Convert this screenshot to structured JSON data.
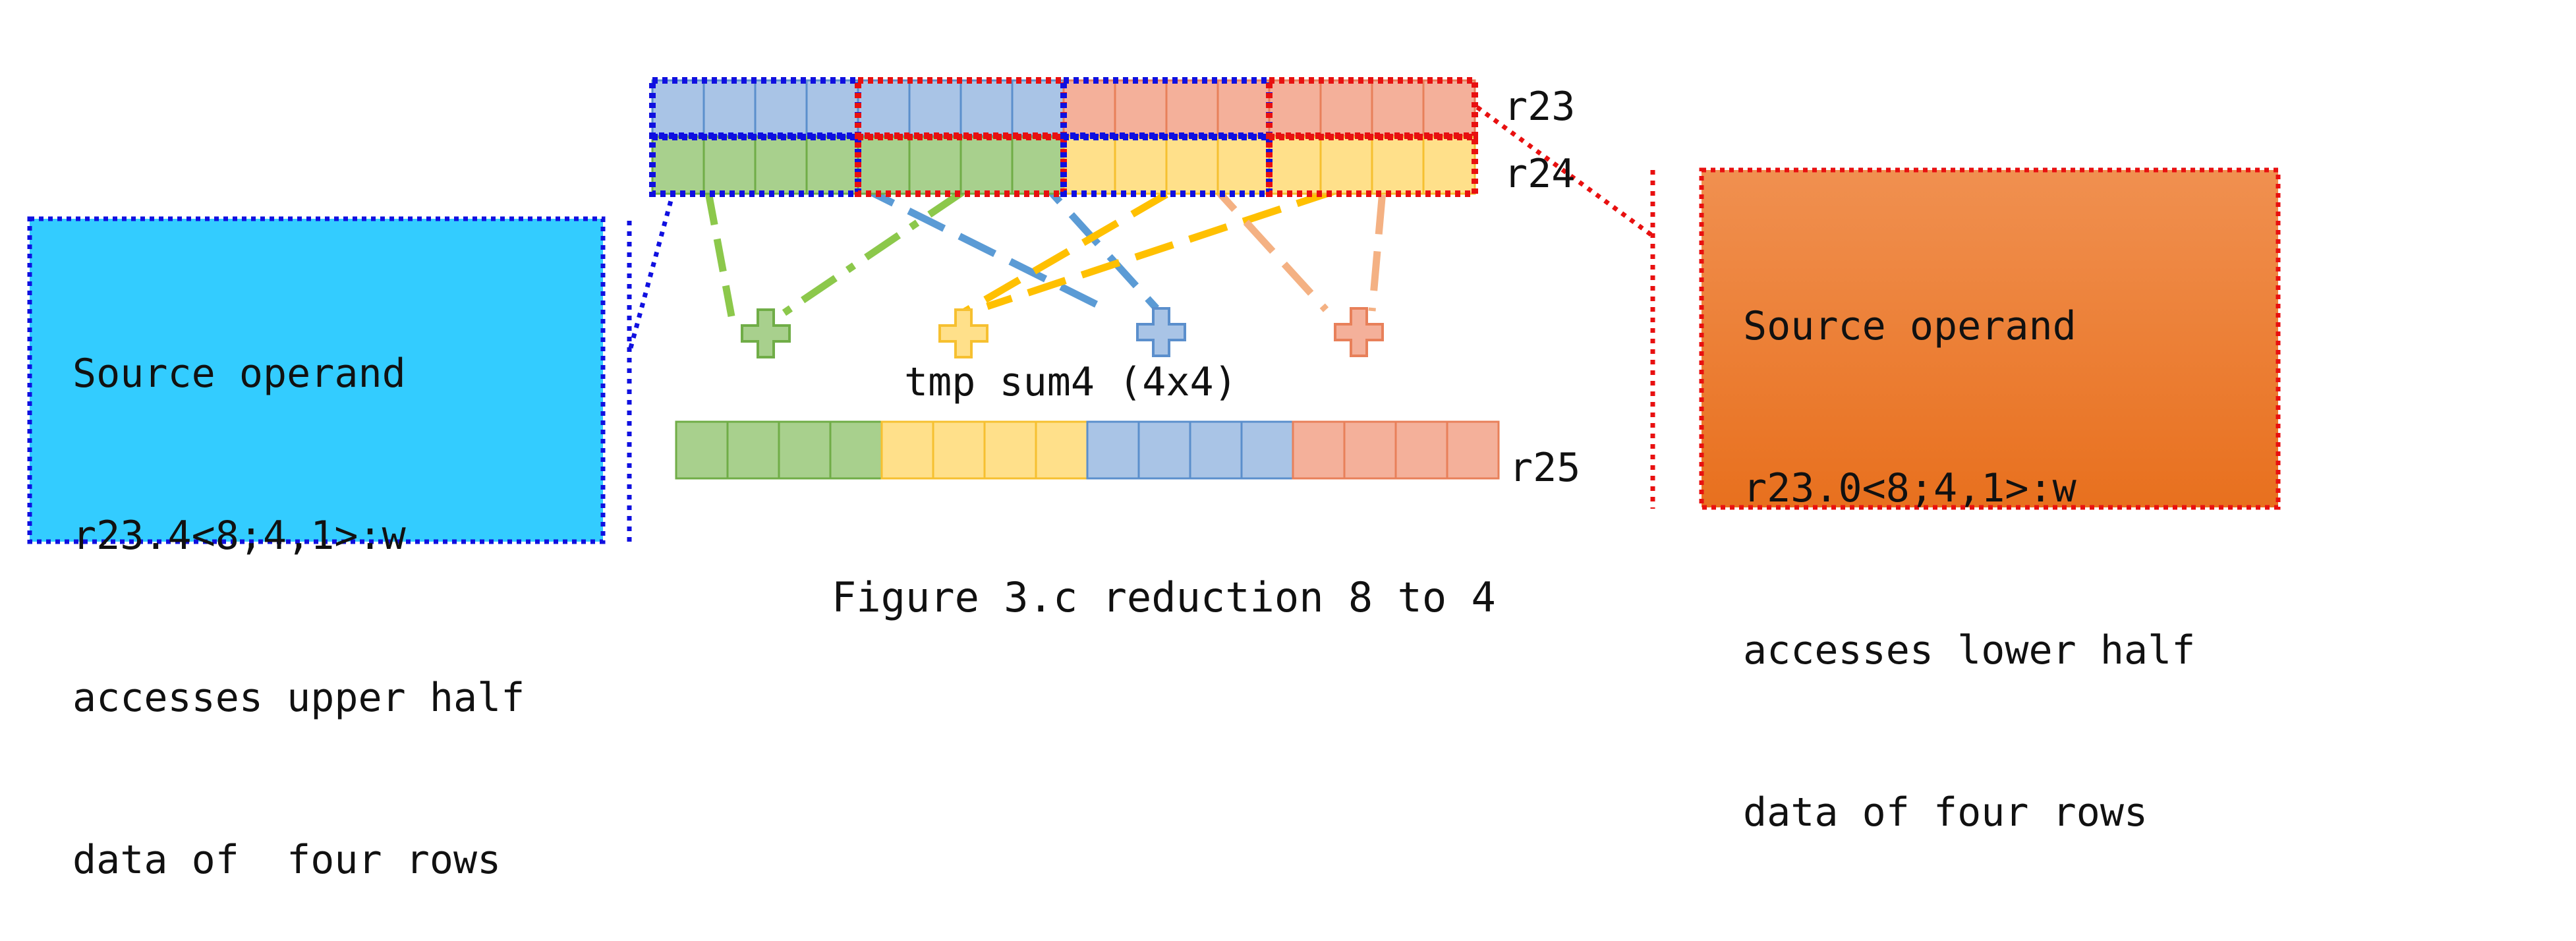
{
  "registers": {
    "r23": "r23",
    "r24": "r24",
    "r25": "r25"
  },
  "tmp_label": "tmp sum4 (4x4)",
  "left_box": {
    "lines": [
      "Source operand",
      "r23.4<8;4,1>:w",
      "accesses upper half",
      "data of  four rows"
    ],
    "fill": "#33CCFF",
    "border": "#1010E0"
  },
  "right_box": {
    "lines": [
      "Source operand",
      "r23.0<8;4,1>:w",
      "accesses lower half",
      "data of four rows"
    ],
    "fill": "#F08040",
    "border": "#E81010"
  },
  "caption": "Figure 3.c reduction 8 to 4",
  "colors": {
    "blue_cell": "#A9C4E6",
    "blue_edge": "#5B8FCC",
    "blue_line": "#5B9BD5",
    "orange_cell": "#F4B09A",
    "orange_edge": "#E8805A",
    "orange_line": "#F4B183",
    "green_cell": "#A8D08D",
    "green_edge": "#70AD47",
    "green_line": "#8CC84B",
    "yellow_cell": "#FFE08A",
    "yellow_edge": "#F6C030",
    "yellow_line": "#FFC000",
    "select_blue": "#1010E0",
    "select_red": "#E81010"
  },
  "icons": [
    "plus-icon-green",
    "plus-icon-yellow",
    "plus-icon-blue",
    "plus-icon-orange"
  ]
}
